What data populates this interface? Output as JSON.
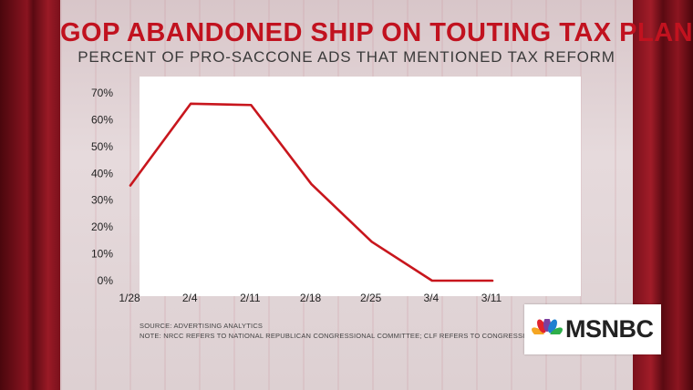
{
  "header": {
    "title": "GOP ABANDONED SHIP ON TOUTING TAX PLAN",
    "subtitle": "PERCENT OF PRO-SACCONE ADS THAT MENTIONED TAX REFORM"
  },
  "footer": {
    "source": "SOURCE: ADVERTISING ANALYTICS",
    "note": "NOTE: NRCC REFERS TO NATIONAL REPUBLICAN CONGRESSIONAL COMMITTEE; CLF REFERS TO CONGRESSIONAL LEADERSHIP FUND SUPER PAC"
  },
  "logo": {
    "text": "MSNBC",
    "icon": "peacock-icon"
  },
  "colors": {
    "line": "#c8161d",
    "title": "#c1121f"
  },
  "chart_data": {
    "type": "line",
    "categories": [
      "1/28",
      "2/4",
      "2/11",
      "2/18",
      "2/25",
      "3/4",
      "3/11"
    ],
    "series": [
      {
        "values": [
          35.5,
          66,
          65.5,
          36,
          14.5,
          0,
          0
        ]
      }
    ],
    "yticks": [
      "0%",
      "10%",
      "20%",
      "30%",
      "40%",
      "50%",
      "60%",
      "70%"
    ],
    "ylim": [
      0,
      70
    ],
    "grid": false,
    "legend": "none"
  }
}
